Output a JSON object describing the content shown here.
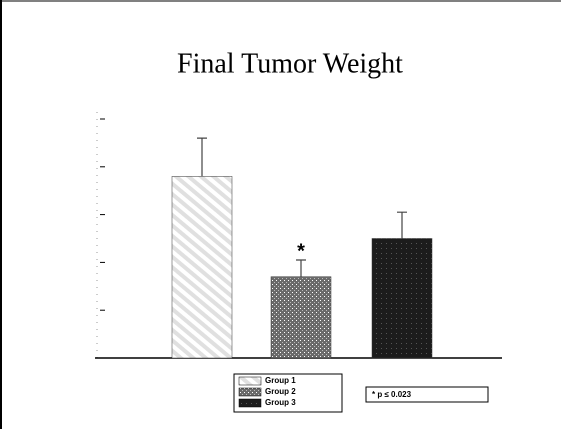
{
  "chart_data": {
    "type": "bar",
    "title": "Final Tumor Weight",
    "categories": [
      "Group 1",
      "Group 2",
      "Group 3"
    ],
    "values": [
      3.8,
      1.7,
      2.5
    ],
    "errors": [
      0.8,
      0.35,
      0.55
    ],
    "colors": [
      "#e0e0e0",
      "#6a6a6a",
      "#1c1c1c"
    ],
    "ylim": [
      0,
      5
    ],
    "yticks": [
      0,
      1,
      2,
      3,
      4,
      5
    ],
    "significance_marker": "*",
    "note": "* p ≤ 0.023"
  }
}
